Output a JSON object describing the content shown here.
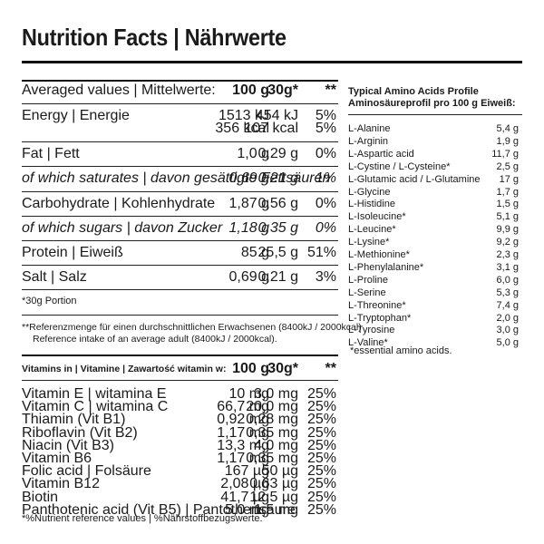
{
  "title": "Nutrition Facts  |  Nährwerte",
  "nutrition": {
    "header": {
      "label": "Averaged values  |  Mittelwerte:",
      "col1": "100 g",
      "col2": "30g*",
      "col3": "**"
    },
    "rows": [
      {
        "label": "Energy  |  Energie",
        "v1": "1513 kJ",
        "v2": "454 kJ",
        "v3": "5%"
      },
      {
        "label": "",
        "v1": "356 kcal",
        "v2": "107 kcal",
        "v3": "5%"
      },
      {
        "label": "Fat  |  Fett",
        "v1": "1,0 g",
        "v2": "0,29 g",
        "v3": "0%"
      },
      {
        "label": "of which saturates  |  davon gesättigte Fettsäuren",
        "v1": "0,69 g",
        "v2": "0,21 g",
        "v3": "1%"
      },
      {
        "label": "Carbohydrate  |  Kohlenhydrate",
        "v1": "1,87 g",
        "v2": "0,56 g",
        "v3": "0%"
      },
      {
        "label": "of which sugars  |  davon Zucker",
        "v1": "1,18 g",
        "v2": "0,35 g",
        "v3": "0%"
      },
      {
        "label": "Protein  |  Eiweiß",
        "v1": "85 g",
        "v2": "25,5 g",
        "v3": "51%"
      },
      {
        "label": "Salt  |  Salz",
        "v1": "0,69 g",
        "v2": "0,21 g",
        "v3": "3%"
      }
    ],
    "portion": "*30g Portion",
    "reference_de": "**Referenzmenge für einen durchschnittlichen Erwachsenen (8400kJ / 2000kcal)",
    "reference_en": "Reference intake of an average adult (8400kJ / 2000kcal)."
  },
  "vitamins": {
    "header": {
      "label": "Vitamins in  |  Vitamine  |  Zawartość witamin w:",
      "col1": "100 g",
      "col2": "30g*",
      "col3": "**"
    },
    "rows": [
      {
        "label": "Vitamin E  |  witamina E",
        "v1": "10 mg",
        "v2": "3,0 mg",
        "v3": "25%"
      },
      {
        "label": "Vitamin C  |  witamina C",
        "v1": "66,7 mg",
        "v2": "20,0 mg",
        "v3": "25%"
      },
      {
        "label": "Thiamin (Vit B1)",
        "v1": "0,92 mg",
        "v2": "0,28 mg",
        "v3": "25%"
      },
      {
        "label": "Riboflavin (Vit B2)",
        "v1": "1,17 mg",
        "v2": "0,35 mg",
        "v3": "25%"
      },
      {
        "label": "Niacin (Vit B3)",
        "v1": "13,3 mg",
        "v2": "4,0 mg",
        "v3": "25%"
      },
      {
        "label": "Vitamin B6",
        "v1": "1,17 mg",
        "v2": "0,35 mg",
        "v3": "25%"
      },
      {
        "label": "Folic acid  |  Folsäure",
        "v1": "167 µg",
        "v2": "50 µg",
        "v3": "25%"
      },
      {
        "label": "Vitamin B12",
        "v1": "2,08 µg",
        "v2": "0,63 µg",
        "v3": "25%"
      },
      {
        "label": "Biotin",
        "v1": "41,7 µg",
        "v2": "12,5 µg",
        "v3": "25%"
      },
      {
        "label": "Panthotenic acid (Vit B5)  |  Pantothensäure",
        "v1": "5,0 mg",
        "v2": "1,5 mg",
        "v3": "25%"
      }
    ],
    "footnote": "*%Nutrient reference values  |  %Nährstoffbezugswerte."
  },
  "amino": {
    "title1": "Typical Amino Acids Profile",
    "title2": "Aminosäureprofil pro 100 g Eiweiß:",
    "rows": [
      {
        "name": "L-Alanine",
        "value": "5,4 g"
      },
      {
        "name": "L-Arginin",
        "value": "1,9 g"
      },
      {
        "name": "L-Aspartic acid",
        "value": "11,7 g"
      },
      {
        "name": "L-Cystine / L-Cysteine*",
        "value": "2,5 g"
      },
      {
        "name": "L-Glutamic acid / L-Glutamine",
        "value": "17 g"
      },
      {
        "name": "L-Glycine",
        "value": "1,7 g"
      },
      {
        "name": "L-Histidine",
        "value": "1,5 g"
      },
      {
        "name": "L-Isoleucine*",
        "value": "5,1 g"
      },
      {
        "name": "L-Leucine*",
        "value": "9,9 g"
      },
      {
        "name": "L-Lysine*",
        "value": "9,2 g"
      },
      {
        "name": "L-Methionine*",
        "value": "2,3 g"
      },
      {
        "name": "L-Phenylalanine*",
        "value": "3,1 g"
      },
      {
        "name": "L-Proline",
        "value": "6,0 g"
      },
      {
        "name": "L-Serine",
        "value": "5,3 g"
      },
      {
        "name": "L-Threonine*",
        "value": "7,4 g"
      },
      {
        "name": "L-Tryptophan*",
        "value": "2,0 g"
      },
      {
        "name": "L-Tyrosine",
        "value": "3,0 g"
      },
      {
        "name": "L-Valine*",
        "value": "5,0 g"
      }
    ],
    "footnote": "*essential amino acids."
  }
}
